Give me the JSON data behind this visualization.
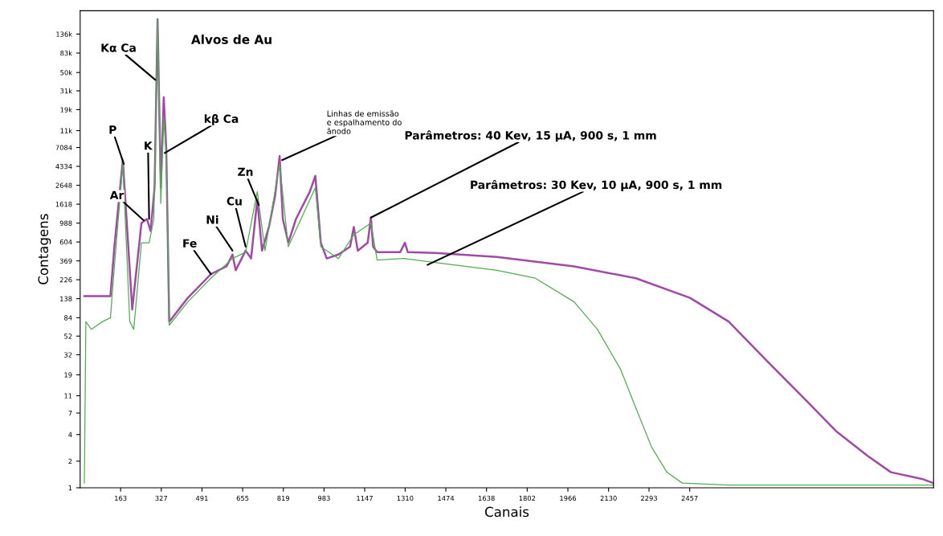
{
  "chart_data": {
    "type": "line",
    "title": "Alvos de Au",
    "xlabel": "Canais",
    "ylabel": "Contagens",
    "log": "y",
    "xlim": [
      0,
      3440
    ],
    "xticks": [
      163,
      327,
      491,
      655,
      819,
      983,
      1147,
      1310,
      1474,
      1638,
      1802,
      1966,
      2130,
      2293,
      2457
    ],
    "ylim": [
      1,
      250000
    ],
    "yticks": [
      1,
      2,
      4,
      7,
      11,
      19,
      32,
      52,
      84,
      138,
      226,
      369,
      604,
      988,
      1618,
      2648,
      4334,
      7084,
      {
        "value": 11000,
        "label": "11k"
      },
      {
        "value": 19000,
        "label": "19k"
      },
      {
        "value": 31000,
        "label": "31k"
      },
      {
        "value": 50000,
        "label": "50k"
      },
      {
        "value": 83000,
        "label": "83k"
      },
      {
        "value": 136000,
        "label": "136k"
      }
    ],
    "grid": false,
    "legend": false,
    "marker": "none",
    "line_style": "solid",
    "series": [
      {
        "color": "#a04aa6",
        "x": [
          17,
          91,
          122,
          138,
          172,
          210,
          247,
          269,
          284,
          300,
          312,
          325,
          337,
          347,
          359,
          372,
          434,
          527,
          590,
          614,
          627,
          667,
          689,
          714,
          733,
          761,
          786,
          804,
          817,
          839,
          870,
          926,
          948,
          970,
          994,
          1041,
          1088,
          1103,
          1119,
          1159,
          1172,
          1181,
          1197,
          1290,
          1309,
          1321,
          1430,
          1680,
          1991,
          2240,
          2458,
          2614,
          2770,
          2925,
          3050,
          3174,
          3268,
          3393,
          3439
        ],
        "values": [
          147,
          147,
          147,
          535,
          5100,
          104,
          990,
          1100,
          806,
          2490,
          200000,
          2490,
          26300,
          6940,
          76,
          84,
          141,
          261,
          320,
          435,
          289,
          482,
          393,
          1830,
          482,
          893,
          2030,
          5650,
          1100,
          592,
          1100,
          2250,
          3380,
          592,
          393,
          435,
          535,
          893,
          482,
          592,
          1140,
          535,
          463,
          463,
          592,
          463,
          454,
          409,
          320,
          235,
          141,
          76,
          27,
          9.8,
          4.3,
          2.3,
          1.5,
          1.26,
          1.13
        ]
      },
      {
        "color": "#4fae4f",
        "x": [
          17,
          23,
          45,
          91,
          122,
          138,
          172,
          200,
          216,
          247,
          278,
          297,
          312,
          325,
          337,
          347,
          359,
          434,
          527,
          614,
          667,
          714,
          745,
          804,
          839,
          948,
          970,
          1041,
          1103,
          1172,
          1197,
          1306,
          1430,
          1680,
          1835,
          1991,
          2085,
          2178,
          2240,
          2303,
          2365,
          2427,
          2614,
          2925,
          3439
        ],
        "values": [
          1.13,
          76,
          62,
          76,
          84,
          320,
          4610,
          76,
          62,
          592,
          592,
          1100,
          200000,
          1650,
          15800,
          5650,
          69,
          127,
          235,
          393,
          463,
          2250,
          482,
          4610,
          535,
          2490,
          535,
          393,
          727,
          990,
          377,
          393,
          355,
          289,
          235,
          127,
          62,
          22,
          8,
          2.9,
          1.5,
          1.13,
          1.07,
          1.07,
          1.07
        ]
      }
    ],
    "annotations": [
      {
        "text": "P",
        "x": 176,
        "y": 4610
      },
      {
        "text": "Ar",
        "x": 256,
        "y": 1060
      },
      {
        "text": "K",
        "x": 278,
        "y": 1100
      },
      {
        "text": "Kα Ca",
        "x": 303,
        "y": 41300
      },
      {
        "text": "kβ Ca",
        "x": 341,
        "y": 6130
      },
      {
        "text": "Fe",
        "x": 527,
        "y": 261
      },
      {
        "text": "Ni",
        "x": 614,
        "y": 482
      },
      {
        "text": "Cu",
        "x": 667,
        "y": 535
      },
      {
        "text": "Zn",
        "x": 720,
        "y": 1585
      },
      {
        "text": "Linhas de emissão\ne espalhamento do\nânodo",
        "x": 814,
        "y": 5100
      },
      {
        "text": "Parâmetros: 40 Kev, 15 µA, 900 s, 1 mm",
        "x": 1172,
        "y": 1140
      },
      {
        "text": "Parâmetros: 30 Kev, 10 µA, 900 s, 1 mm",
        "x": 1400,
        "y": 333
      }
    ]
  }
}
